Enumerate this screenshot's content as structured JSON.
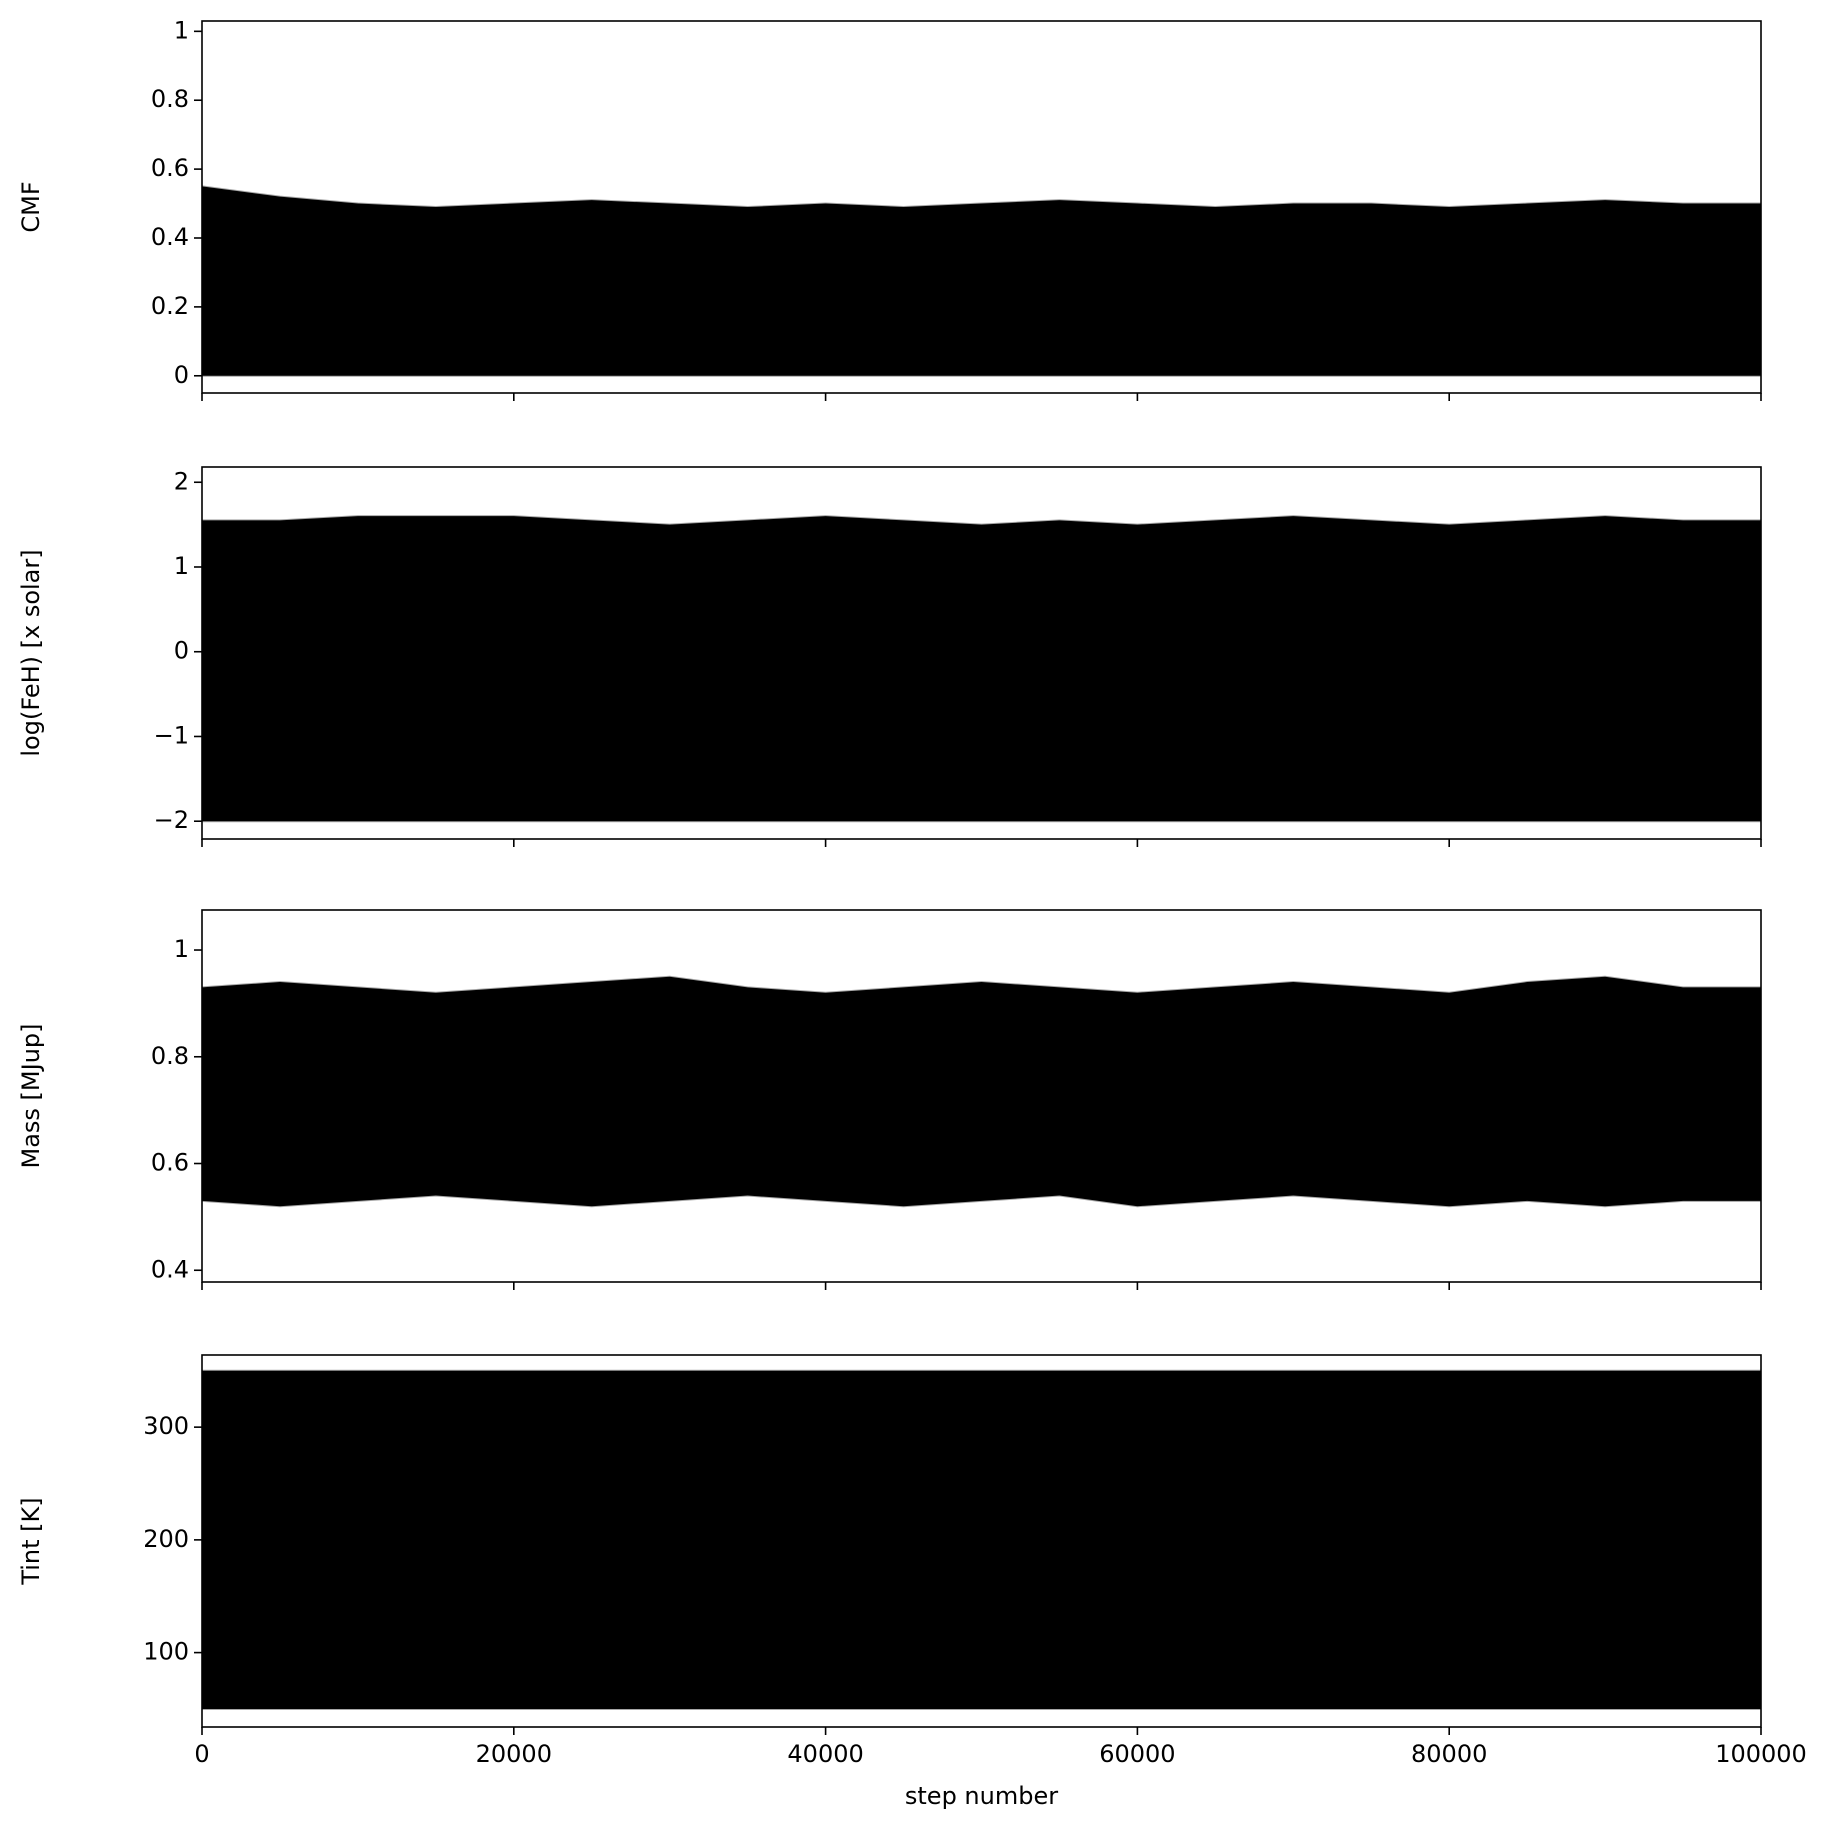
{
  "chart_data": [
    {
      "type": "band",
      "ylabel": "CMF",
      "color": "#000000",
      "x": [
        0,
        5000,
        10000,
        15000,
        20000,
        25000,
        30000,
        35000,
        40000,
        45000,
        50000,
        55000,
        60000,
        65000,
        70000,
        75000,
        80000,
        85000,
        90000,
        95000,
        100000
      ],
      "upper": [
        0.55,
        0.52,
        0.5,
        0.49,
        0.5,
        0.51,
        0.5,
        0.49,
        0.5,
        0.49,
        0.5,
        0.51,
        0.5,
        0.49,
        0.5,
        0.5,
        0.49,
        0.5,
        0.51,
        0.5,
        0.5
      ],
      "lower": [
        0,
        0,
        0,
        0,
        0,
        0,
        0,
        0,
        0,
        0,
        0,
        0,
        0,
        0,
        0,
        0,
        0,
        0,
        0,
        0,
        0
      ],
      "xlim": [
        0,
        100000
      ],
      "xticks": [
        0,
        20000,
        40000,
        60000,
        80000,
        100000
      ],
      "show_xticklabels": false,
      "ylim": [
        -0.05,
        1.03
      ],
      "yticks": [
        0.0,
        0.2,
        0.4,
        0.6,
        0.8,
        1.0
      ]
    },
    {
      "type": "band",
      "ylabel": "log(FeH) [x solar]",
      "color": "#000000",
      "x": [
        0,
        5000,
        10000,
        15000,
        20000,
        25000,
        30000,
        35000,
        40000,
        45000,
        50000,
        55000,
        60000,
        65000,
        70000,
        75000,
        80000,
        85000,
        90000,
        95000,
        100000
      ],
      "upper": [
        1.55,
        1.55,
        1.6,
        1.6,
        1.6,
        1.55,
        1.5,
        1.55,
        1.6,
        1.55,
        1.5,
        1.55,
        1.5,
        1.55,
        1.6,
        1.55,
        1.5,
        1.55,
        1.6,
        1.55,
        1.55
      ],
      "lower": [
        -2,
        -2,
        -2,
        -2,
        -2,
        -2,
        -2,
        -2,
        -2,
        -2,
        -2,
        -2,
        -2,
        -2,
        -2,
        -2,
        -2,
        -2,
        -2,
        -2,
        -2
      ],
      "xlim": [
        0,
        100000
      ],
      "xticks": [
        0,
        20000,
        40000,
        60000,
        80000,
        100000
      ],
      "show_xticklabels": false,
      "ylim": [
        -2.21,
        2.18
      ],
      "yticks": [
        {
          "value": -2,
          "label": "−2"
        },
        {
          "value": -1,
          "label": "−1"
        },
        0,
        1,
        2
      ]
    },
    {
      "type": "band",
      "ylabel": "Mass [MJup]",
      "color": "#000000",
      "x": [
        0,
        5000,
        10000,
        15000,
        20000,
        25000,
        30000,
        35000,
        40000,
        45000,
        50000,
        55000,
        60000,
        65000,
        70000,
        75000,
        80000,
        85000,
        90000,
        95000,
        100000
      ],
      "upper": [
        0.93,
        0.94,
        0.93,
        0.92,
        0.93,
        0.94,
        0.95,
        0.93,
        0.92,
        0.93,
        0.94,
        0.93,
        0.92,
        0.93,
        0.94,
        0.93,
        0.92,
        0.94,
        0.95,
        0.93,
        0.93
      ],
      "lower": [
        0.53,
        0.52,
        0.53,
        0.54,
        0.53,
        0.52,
        0.53,
        0.54,
        0.53,
        0.52,
        0.53,
        0.54,
        0.52,
        0.53,
        0.54,
        0.53,
        0.52,
        0.53,
        0.52,
        0.53,
        0.53
      ],
      "xlim": [
        0,
        100000
      ],
      "xticks": [
        0,
        20000,
        40000,
        60000,
        80000,
        100000
      ],
      "show_xticklabels": false,
      "ylim": [
        0.378,
        1.075
      ],
      "yticks": [
        0.4,
        0.6,
        0.8,
        1.0
      ]
    },
    {
      "type": "band",
      "ylabel": "Tint [K]",
      "xlabel": "step number",
      "color": "#000000",
      "x": [
        0,
        5000,
        10000,
        15000,
        20000,
        25000,
        30000,
        35000,
        40000,
        45000,
        50000,
        55000,
        60000,
        65000,
        70000,
        75000,
        80000,
        85000,
        90000,
        95000,
        100000
      ],
      "upper": [
        350,
        350,
        350,
        350,
        350,
        350,
        350,
        350,
        350,
        350,
        350,
        350,
        350,
        350,
        350,
        350,
        350,
        350,
        350,
        350,
        350
      ],
      "lower": [
        50,
        50,
        50,
        50,
        50,
        50,
        50,
        50,
        50,
        50,
        50,
        50,
        50,
        50,
        50,
        50,
        50,
        50,
        50,
        50,
        50
      ],
      "xlim": [
        0,
        100000
      ],
      "xticks": [
        0,
        20000,
        40000,
        60000,
        80000,
        100000
      ],
      "show_xticklabels": true,
      "ylim": [
        34,
        364
      ],
      "yticks": [
        100,
        200,
        300
      ]
    }
  ]
}
